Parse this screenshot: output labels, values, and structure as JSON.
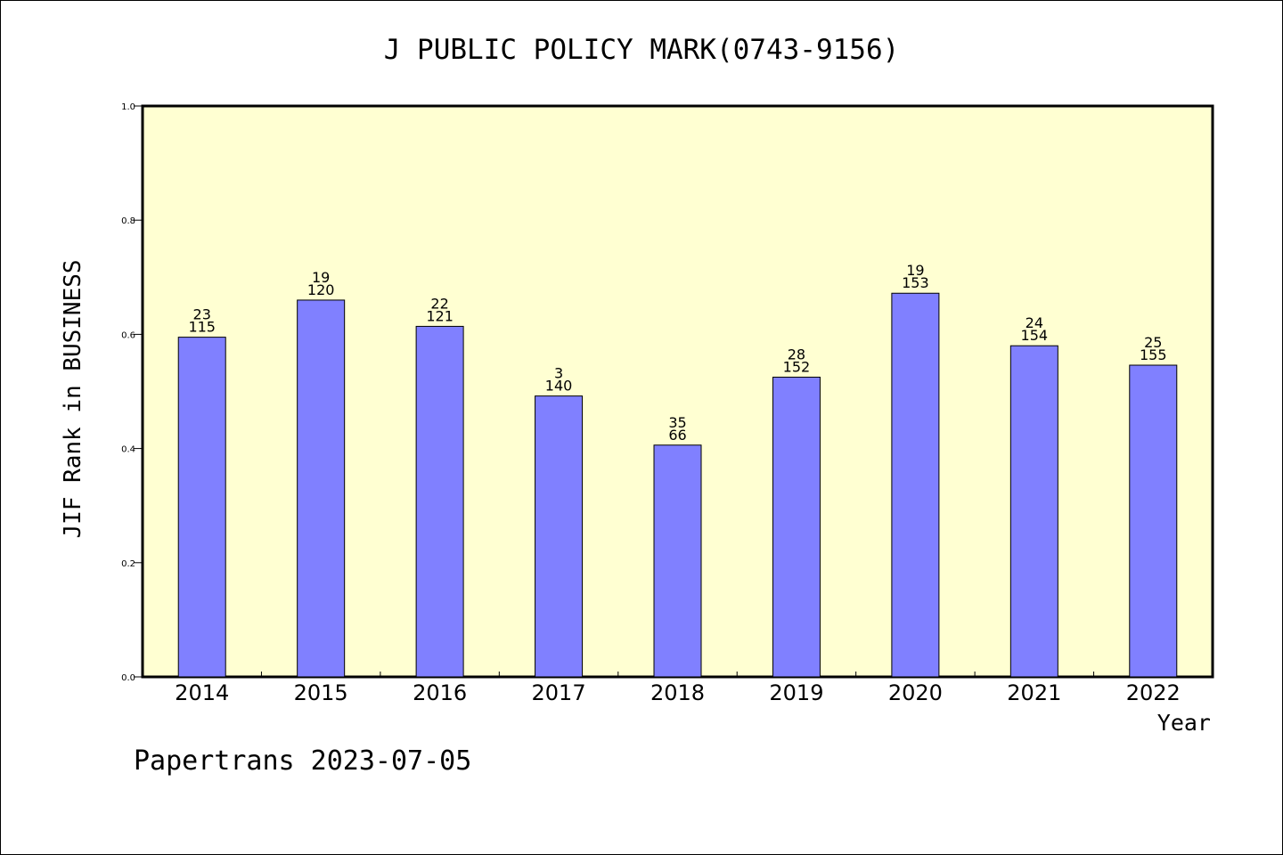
{
  "chart_data": {
    "type": "bar",
    "title": "J PUBLIC POLICY MARK(0743-9156)",
    "xlabel": "Year",
    "ylabel": "JIF Rank in BUSINESS",
    "ylim": [
      0,
      1.0
    ],
    "yticks": [
      "0.0",
      "0.2",
      "0.4",
      "0.6",
      "0.8",
      "1.0"
    ],
    "categories": [
      "2014",
      "2015",
      "2016",
      "2017",
      "2018",
      "2019",
      "2020",
      "2021",
      "2022"
    ],
    "values": [
      0.595,
      0.66,
      0.614,
      0.492,
      0.406,
      0.525,
      0.672,
      0.58,
      0.546
    ],
    "rank": [
      "23",
      "19",
      "22",
      "3",
      "35",
      "28",
      "19",
      "24",
      "25"
    ],
    "total": [
      "115",
      "120",
      "121",
      "140",
      "66",
      "152",
      "153",
      "154",
      "155"
    ],
    "grid": false,
    "colors": {
      "plot_background": "#ffffd2",
      "bar": "#8080ff",
      "bar_edge": "#000000"
    }
  },
  "footer": "Papertrans 2023-07-05"
}
